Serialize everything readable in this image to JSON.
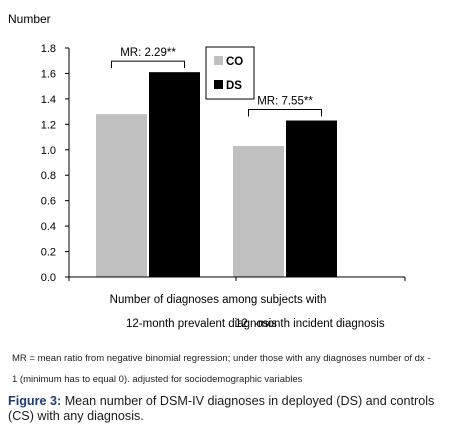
{
  "chart_data": {
    "type": "bar",
    "ylabel": "Number",
    "ylim": [
      0,
      1.8
    ],
    "yticks": [
      "0.0",
      "0.2",
      "0.4",
      "0.6",
      "0.8",
      "1.0",
      "1.2",
      "1.4",
      "1.6",
      "1.8"
    ],
    "xlabel": "Number of diagnoses among subjects with",
    "categories": [
      "12-month prevalent diagnosis",
      "12  -month incident diagnosis"
    ],
    "series": [
      {
        "name": "CO",
        "color": "#c0c0c0",
        "values": [
          1.28,
          1.03
        ]
      },
      {
        "name": "DS",
        "color": "#000000",
        "values": [
          1.61,
          1.23
        ]
      }
    ],
    "annotations": [
      "MR: 2.29**",
      "MR: 7.55**"
    ],
    "legend": "upper center"
  },
  "note": {
    "line1": "MR = mean ratio from negative binomial regression; under those with any diagnoses number of dx -",
    "line2": "1 (minimum has to equal 0). adjusted for sociodemographic variables"
  },
  "caption": {
    "label": "Figure 3:",
    "text": "Mean number of DSM-IV diagnoses in deployed (DS) and controls (CS) with any diagnosis."
  }
}
